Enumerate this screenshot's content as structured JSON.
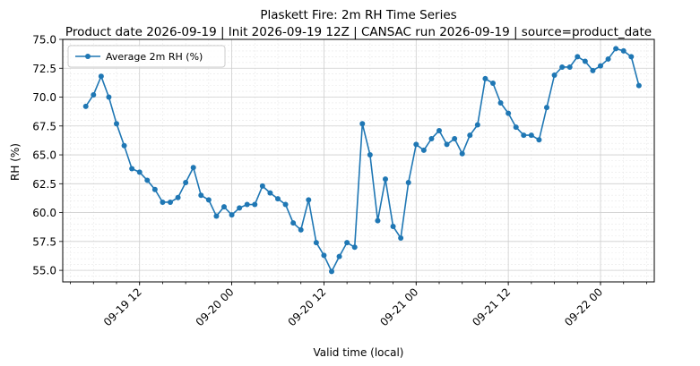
{
  "chart_data": {
    "type": "line",
    "title": "Plaskett Fire: 2m RH Time Series",
    "subtitle": "Product date 2026-09-19 | Init 2026-09-19 12Z | CANSAC run 2026-09-19 | source=product_date",
    "xlabel": "Valid time (local)",
    "ylabel": "RH (%)",
    "x_unit": "hours",
    "xlim": [
      "2026-09-19 02:00",
      "2026-09-22 07:00"
    ],
    "ylim": [
      54.0,
      75.0
    ],
    "y_ticks": [
      55.0,
      57.5,
      60.0,
      62.5,
      65.0,
      67.5,
      70.0,
      72.5,
      75.0
    ],
    "y_tick_labels": [
      "55.0",
      "57.5",
      "60.0",
      "62.5",
      "65.0",
      "67.5",
      "70.0",
      "72.5",
      "75.0"
    ],
    "x_ticks": [
      "2026-09-19 12:00",
      "2026-09-20 00:00",
      "2026-09-20 12:00",
      "2026-09-21 00:00",
      "2026-09-21 12:00",
      "2026-09-22 00:00"
    ],
    "x_tick_labels": [
      "09-19 12",
      "09-20 00",
      "09-20 12",
      "09-21 00",
      "09-21 12",
      "09-22 00"
    ],
    "grid": true,
    "legend_position": "upper-left",
    "series": [
      {
        "name": "Average 2m RH (%)",
        "color": "#1f77b4",
        "marker": "circle",
        "x": [
          "2026-09-19 05:00",
          "2026-09-19 06:00",
          "2026-09-19 07:00",
          "2026-09-19 08:00",
          "2026-09-19 09:00",
          "2026-09-19 10:00",
          "2026-09-19 11:00",
          "2026-09-19 12:00",
          "2026-09-19 13:00",
          "2026-09-19 14:00",
          "2026-09-19 15:00",
          "2026-09-19 16:00",
          "2026-09-19 17:00",
          "2026-09-19 18:00",
          "2026-09-19 19:00",
          "2026-09-19 20:00",
          "2026-09-19 21:00",
          "2026-09-19 22:00",
          "2026-09-19 23:00",
          "2026-09-20 00:00",
          "2026-09-20 01:00",
          "2026-09-20 02:00",
          "2026-09-20 03:00",
          "2026-09-20 04:00",
          "2026-09-20 05:00",
          "2026-09-20 06:00",
          "2026-09-20 07:00",
          "2026-09-20 08:00",
          "2026-09-20 09:00",
          "2026-09-20 10:00",
          "2026-09-20 11:00",
          "2026-09-20 12:00",
          "2026-09-20 13:00",
          "2026-09-20 14:00",
          "2026-09-20 15:00",
          "2026-09-20 16:00",
          "2026-09-20 17:00",
          "2026-09-20 18:00",
          "2026-09-20 19:00",
          "2026-09-20 20:00",
          "2026-09-20 21:00",
          "2026-09-20 22:00",
          "2026-09-20 23:00",
          "2026-09-21 00:00",
          "2026-09-21 01:00",
          "2026-09-21 02:00",
          "2026-09-21 03:00",
          "2026-09-21 04:00",
          "2026-09-21 05:00",
          "2026-09-21 06:00",
          "2026-09-21 07:00",
          "2026-09-21 08:00",
          "2026-09-21 09:00",
          "2026-09-21 10:00",
          "2026-09-21 11:00",
          "2026-09-21 12:00",
          "2026-09-21 13:00",
          "2026-09-21 14:00",
          "2026-09-21 15:00",
          "2026-09-21 16:00",
          "2026-09-21 17:00",
          "2026-09-21 18:00",
          "2026-09-21 19:00",
          "2026-09-21 20:00",
          "2026-09-21 21:00",
          "2026-09-21 22:00",
          "2026-09-21 23:00",
          "2026-09-22 00:00",
          "2026-09-22 01:00",
          "2026-09-22 02:00",
          "2026-09-22 03:00",
          "2026-09-22 04:00",
          "2026-09-22 05:00"
        ],
        "values": [
          69.2,
          70.2,
          71.8,
          70.0,
          67.7,
          65.8,
          63.8,
          63.5,
          62.8,
          62.0,
          60.9,
          60.9,
          61.3,
          62.6,
          63.9,
          61.5,
          61.1,
          59.7,
          60.5,
          59.8,
          60.4,
          60.7,
          60.7,
          62.3,
          61.7,
          61.2,
          60.7,
          59.1,
          58.5,
          61.1,
          57.4,
          56.3,
          54.9,
          56.2,
          57.4,
          57.0,
          67.7,
          65.0,
          59.3,
          62.9,
          58.8,
          57.8,
          62.6,
          65.9,
          65.4,
          66.4,
          67.1,
          65.9,
          66.4,
          65.1,
          66.7,
          67.6,
          71.6,
          71.2,
          69.5,
          68.6,
          67.4,
          66.7,
          66.7,
          66.3,
          69.1,
          71.9,
          72.6,
          72.6,
          73.5,
          73.1,
          72.3,
          72.7,
          73.3,
          74.2,
          74.0,
          73.5,
          71.0
        ]
      }
    ]
  }
}
